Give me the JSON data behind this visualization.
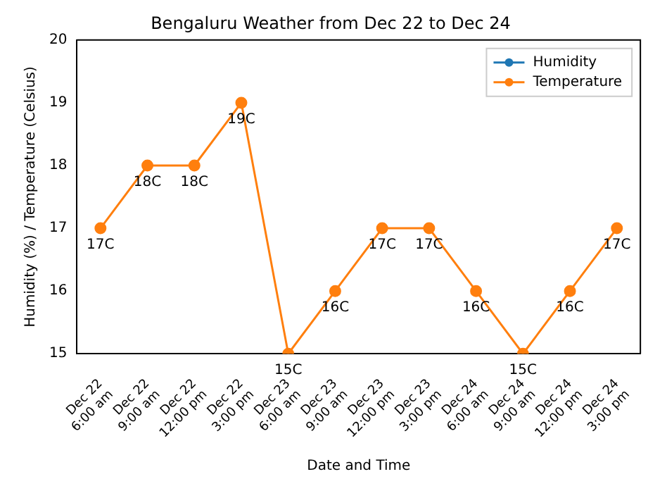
{
  "chart_data": {
    "type": "line",
    "title": "Bengaluru Weather from Dec 22 to Dec 24",
    "xlabel": "Date and Time",
    "ylabel": "Humidity (%) / Temperature (Celsius)",
    "categories": [
      "Dec 22\n6:00 am",
      "Dec 22\n9:00 am",
      "Dec 22\n12:00 pm",
      "Dec 22\n3:00 pm",
      "Dec 23\n6:00 am",
      "Dec 23\n9:00 am",
      "Dec 23\n12:00 pm",
      "Dec 23\n3:00 pm",
      "Dec 24\n6:00 am",
      "Dec 24\n9:00 am",
      "Dec 24\n12:00 pm",
      "Dec 24\n3:00 pm"
    ],
    "series": [
      {
        "name": "Humidity",
        "color": "#1f77b4",
        "values": [
          null,
          null,
          null,
          null,
          null,
          null,
          null,
          null,
          null,
          null,
          null,
          null
        ]
      },
      {
        "name": "Temperature",
        "color": "#ff7f0e",
        "values": [
          17,
          18,
          18,
          19,
          15,
          16,
          17,
          17,
          16,
          15,
          16,
          17
        ],
        "value_labels": [
          "17C",
          "18C",
          "18C",
          "19C",
          "15C",
          "16C",
          "17C",
          "17C",
          "16C",
          "15C",
          "16C",
          "17C"
        ]
      }
    ],
    "ylim": [
      15,
      20
    ],
    "yticks": [
      15,
      16,
      17,
      18,
      19,
      20
    ],
    "grid": false,
    "legend": "top right",
    "marker": "circle",
    "line_style": "solid"
  }
}
